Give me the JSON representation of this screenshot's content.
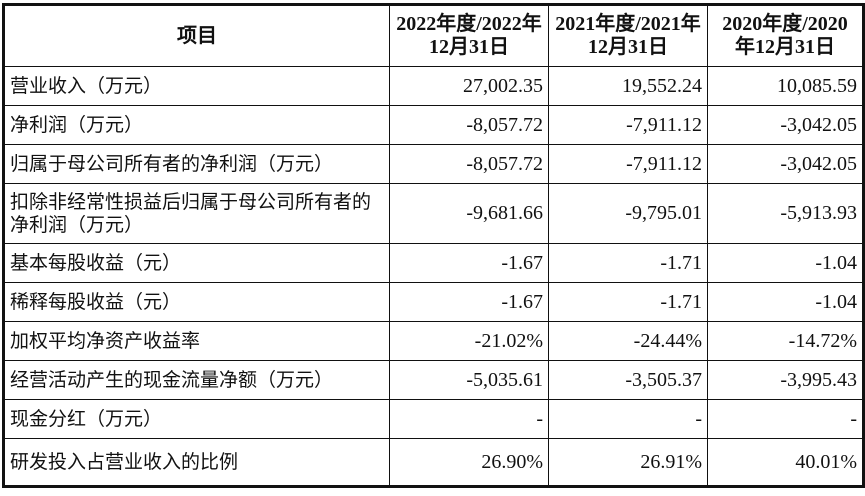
{
  "header": {
    "item": "项目",
    "columns": [
      "2022年度/2022年12月31日",
      "2021年度/2021年12月31日",
      "2020年度/2020年12月31日"
    ]
  },
  "rows": [
    {
      "label": "营业收入（万元）",
      "values": [
        "27,002.35",
        "19,552.24",
        "10,085.59"
      ]
    },
    {
      "label": "净利润（万元）",
      "values": [
        "-8,057.72",
        "-7,911.12",
        "-3,042.05"
      ]
    },
    {
      "label": "归属于母公司所有者的净利润（万元）",
      "values": [
        "-8,057.72",
        "-7,911.12",
        "-3,042.05"
      ]
    },
    {
      "label": "扣除非经常性损益后归属于母公司所有者的净利润（万元）",
      "values": [
        "-9,681.66",
        "-9,795.01",
        "-5,913.93"
      ]
    },
    {
      "label": "基本每股收益（元）",
      "values": [
        "-1.67",
        "-1.71",
        "-1.04"
      ]
    },
    {
      "label": "稀释每股收益（元）",
      "values": [
        "-1.67",
        "-1.71",
        "-1.04"
      ]
    },
    {
      "label": "加权平均净资产收益率",
      "values": [
        "-21.02%",
        "-24.44%",
        "-14.72%"
      ]
    },
    {
      "label": "经营活动产生的现金流量净额（万元）",
      "values": [
        "-5,035.61",
        "-3,505.37",
        "-3,995.43"
      ]
    },
    {
      "label": "现金分红（万元）",
      "values": [
        "-",
        "-",
        "-"
      ]
    },
    {
      "label": "研发投入占营业收入的比例",
      "values": [
        "26.90%",
        "26.91%",
        "40.01%"
      ]
    }
  ]
}
